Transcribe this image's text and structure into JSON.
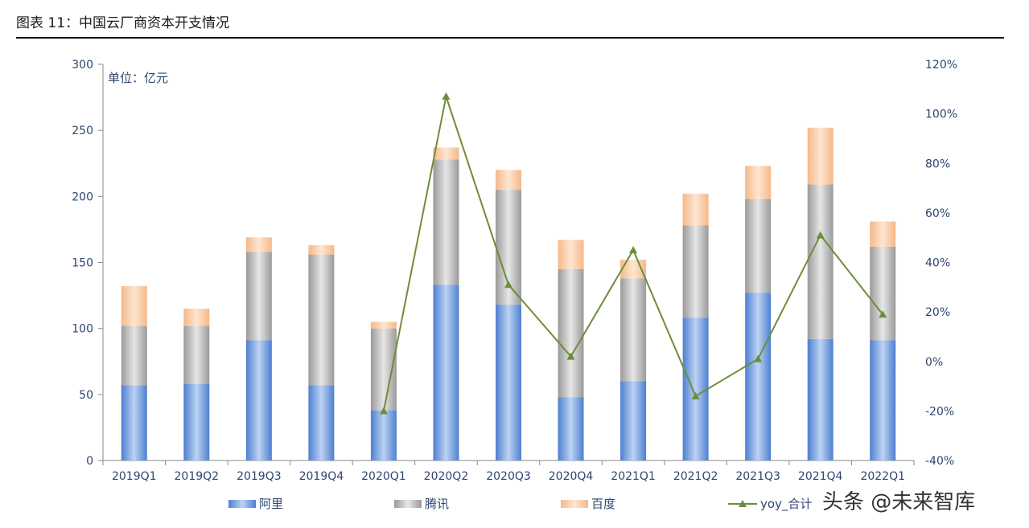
{
  "header": {
    "title": "图表 11：中国云厂商资本开支情况"
  },
  "watermark": "头条 @未来智库",
  "colors": {
    "ali": "#6f9fe0",
    "tencent": "#b4b4b4",
    "baidu": "#f8c9a2",
    "yoy": "#6e8d3a",
    "axis_text": "#2d4670"
  },
  "chart_data": {
    "type": "bar",
    "stacked": true,
    "unit_label": "单位：亿元",
    "categories": [
      "2019Q1",
      "2019Q2",
      "2019Q3",
      "2019Q4",
      "2020Q1",
      "2020Q2",
      "2020Q3",
      "2020Q4",
      "2021Q1",
      "2021Q2",
      "2021Q3",
      "2021Q4",
      "2022Q1"
    ],
    "series": [
      {
        "name": "阿里",
        "values": [
          57,
          58,
          91,
          57,
          38,
          133,
          118,
          48,
          60,
          108,
          127,
          92,
          91
        ]
      },
      {
        "name": "腾讯",
        "values": [
          45,
          44,
          67,
          99,
          62,
          95,
          87,
          97,
          78,
          70,
          71,
          117,
          71
        ]
      },
      {
        "name": "百度",
        "values": [
          30,
          13,
          11,
          7,
          5,
          9,
          15,
          22,
          14,
          24,
          25,
          43,
          19
        ]
      }
    ],
    "line_series": {
      "name": "yoy_合计",
      "axis": "right",
      "values": [
        null,
        null,
        null,
        null,
        -20,
        107,
        31,
        2,
        45,
        -14,
        1,
        51,
        19
      ]
    },
    "y_left": {
      "min": 0,
      "max": 300,
      "ticks": [
        "0",
        "50",
        "100",
        "150",
        "200",
        "250",
        "300"
      ]
    },
    "y_right": {
      "min": -40,
      "max": 120,
      "ticks": [
        "-40%",
        "-20%",
        "0%",
        "20%",
        "40%",
        "60%",
        "80%",
        "100%",
        "120%"
      ]
    },
    "grid": false,
    "legend_position": "bottom"
  }
}
